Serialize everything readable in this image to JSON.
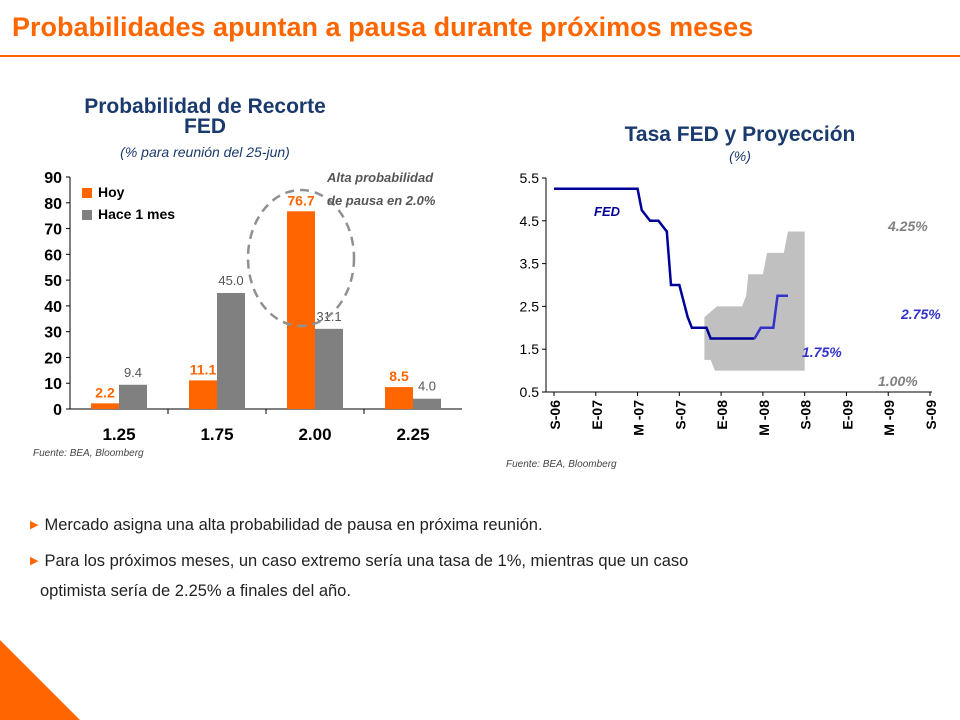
{
  "slide": {
    "title": "Probabilidades apuntan a pausa durante próximos meses"
  },
  "left_panel": {
    "title_line1": "Probabilidad de Recorte",
    "title_line2": "FED",
    "subtitle": "(% para reunión del 25-jun)",
    "annotation_line1": "Alta probabilidad",
    "annotation_line2": "de pausa en 2.0%",
    "source": "Fuente: BEA, Bloomberg"
  },
  "right_panel": {
    "title": "Tasa FED y Proyección",
    "subtitle": "(%)",
    "source": "Fuente: BEA, Bloomberg"
  },
  "bullets": [
    "Mercado asigna una alta probabilidad de pausa en próxima reunión.",
    "Para los próximos meses, un caso extremo sería una tasa de 1%, mientras que un caso",
    "optimista sería de 2.25% a finales del año."
  ],
  "colors": {
    "accent": "#FF6600",
    "gray_bar": "#808080",
    "fed_line": "#000099",
    "projection_band": "#C0C0C0",
    "projection_line": "#3333CC",
    "title_text": "#1a3a6e"
  },
  "chart_data": [
    {
      "type": "bar",
      "categories": [
        "1.25",
        "1.75",
        "2.00",
        "2.25"
      ],
      "series": [
        {
          "name": "Hoy",
          "values": [
            2.2,
            11.1,
            76.7,
            8.5
          ],
          "labels": [
            "2.2",
            "11.1",
            "76.7",
            "8.5"
          ],
          "color": "#FF6600"
        },
        {
          "name": "Hace 1 mes",
          "values": [
            9.4,
            45.0,
            31.1,
            4.0
          ],
          "labels": [
            "9.4",
            "45.0",
            "31.1",
            "4.0"
          ],
          "color": "#808080"
        }
      ],
      "yticks": [
        "0",
        "10",
        "20",
        "30",
        "40",
        "50",
        "60",
        "70",
        "80",
        "90"
      ],
      "ylim": [
        0,
        90
      ],
      "legend": "top-left"
    },
    {
      "type": "line",
      "x_ticks": [
        "S-06",
        "E-07",
        "M -07",
        "S-07",
        "E-08",
        "M -08",
        "S-08",
        "E-09",
        "M -09",
        "S-09"
      ],
      "yticks": [
        "0.5",
        "1.5",
        "2.5",
        "3.5",
        "4.5",
        "5.5"
      ],
      "ylim": [
        0.5,
        5.5
      ],
      "series": [
        {
          "name": "FED",
          "points": [
            [
              0,
              5.25
            ],
            [
              0.5,
              5.25
            ],
            [
              1.0,
              5.25
            ],
            [
              1.5,
              5.25
            ],
            [
              2.0,
              5.25
            ],
            [
              2.1,
              4.75
            ],
            [
              2.3,
              4.5
            ],
            [
              2.5,
              4.5
            ],
            [
              2.7,
              4.25
            ],
            [
              2.8,
              3.0
            ],
            [
              3.0,
              3.0
            ],
            [
              3.2,
              2.25
            ],
            [
              3.3,
              2.0
            ],
            [
              3.5,
              2.0
            ],
            [
              3.65,
              2.0
            ],
            [
              3.75,
              1.75
            ],
            [
              4.35,
              1.75
            ],
            [
              4.55,
              1.75
            ],
            [
              4.8,
              1.75
            ],
            [
              4.95,
              2.0
            ],
            [
              5.25,
              2.0
            ],
            [
              5.35,
              2.75
            ],
            [
              5.6,
              2.75
            ]
          ],
          "label": "1.75%"
        }
      ],
      "projection_band": {
        "upper": [
          [
            3.6,
            2.25
          ],
          [
            3.9,
            2.5
          ],
          [
            4.3,
            2.5
          ],
          [
            4.5,
            2.5
          ],
          [
            4.6,
            2.75
          ],
          [
            4.65,
            3.25
          ],
          [
            5.0,
            3.25
          ],
          [
            5.1,
            3.75
          ],
          [
            5.5,
            3.75
          ],
          [
            5.6,
            4.25
          ],
          [
            6.0,
            4.25
          ]
        ],
        "lower": [
          [
            6.0,
            1.0
          ],
          [
            3.95,
            1.0
          ],
          [
            3.85,
            1.0
          ],
          [
            3.75,
            1.25
          ],
          [
            3.6,
            1.25
          ]
        ]
      },
      "annotations": [
        "FED",
        "4.25%",
        "2.75%",
        "1.75%",
        "1.00%"
      ]
    }
  ]
}
